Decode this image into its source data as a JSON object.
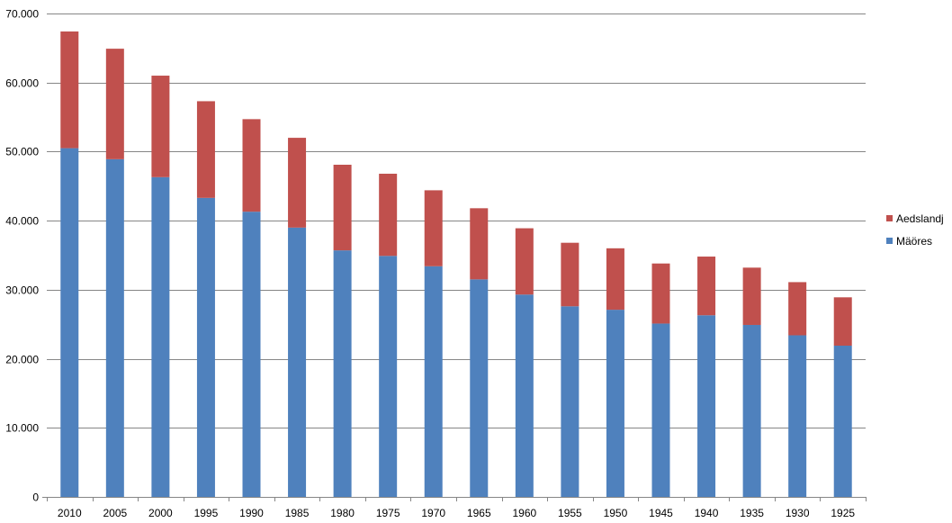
{
  "chart_data": {
    "type": "bar",
    "stacked": true,
    "title": "",
    "xlabel": "",
    "ylabel": "",
    "ylim": [
      0,
      70000
    ],
    "y_ticks": [
      0,
      10000,
      20000,
      30000,
      40000,
      50000,
      60000,
      70000
    ],
    "y_tick_labels": [
      "0",
      "10.000",
      "20.000",
      "30.000",
      "40.000",
      "50.000",
      "60.000",
      "70.000"
    ],
    "grid": "horizontal",
    "legend_position": "right",
    "categories": [
      "2010",
      "2005",
      "2000",
      "1995",
      "1990",
      "1985",
      "1980",
      "1975",
      "1970",
      "1965",
      "1960",
      "1955",
      "1950",
      "1945",
      "1940",
      "1935",
      "1930",
      "1925"
    ],
    "series": [
      {
        "name": "Mäöres",
        "color": "#4F81BD",
        "values": [
          50500,
          48900,
          46300,
          43300,
          41300,
          39000,
          35700,
          34900,
          33400,
          31500,
          29300,
          27600,
          27100,
          25100,
          26300,
          24900,
          23400,
          21900
        ]
      },
      {
        "name": "Aedslandj",
        "color": "#C0504D",
        "values": [
          16900,
          16000,
          14700,
          14000,
          13400,
          13000,
          12400,
          11900,
          11000,
          10300,
          9600,
          9200,
          8900,
          8700,
          8500,
          8300,
          7700,
          7000
        ]
      }
    ],
    "legend_order": [
      "Aedslandj",
      "Mäöres"
    ]
  }
}
